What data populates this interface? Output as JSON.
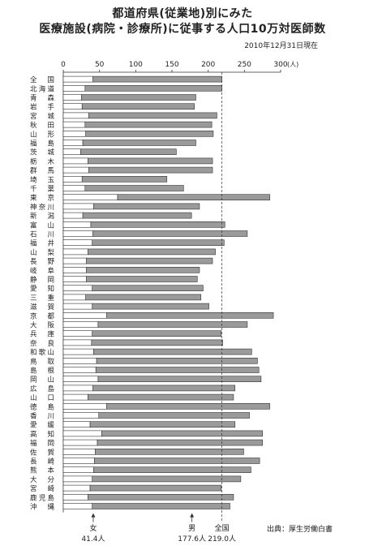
{
  "title_line1": "都道府県(従業地)別にみた",
  "title_line2": "医療施設(病院・診療所)に従事する人口10万対医師数",
  "as_of": "2010年12月31日現在",
  "source": "出典：厚生労働白書",
  "markers": {
    "female": {
      "label": "女",
      "value_label": "41.4人",
      "value": 41.4
    },
    "male": {
      "label": "男",
      "value_label": "177.6人",
      "value": 177.6
    },
    "national": {
      "label": "全国",
      "value_label": "219.0人",
      "value": 219.0
    }
  },
  "colors": {
    "female_bar": "#ffffff",
    "male_bar": "#9a9a9a",
    "outline": "#333333"
  },
  "chart_data": {
    "type": "bar",
    "orientation": "horizontal",
    "stacked": true,
    "xlim": [
      0,
      300
    ],
    "x_ticks": [
      "0",
      "50",
      "100",
      "150",
      "200",
      "250",
      "300"
    ],
    "x_unit": "(人)",
    "categories": [
      "全国",
      "北海道",
      "青森",
      "岩手",
      "宮城",
      "秋田",
      "山形",
      "福島",
      "茨城",
      "栃木",
      "群馬",
      "埼玉",
      "千葉",
      "東京",
      "神奈川",
      "新潟",
      "富山",
      "石川",
      "福井",
      "山梨",
      "長野",
      "岐阜",
      "静岡",
      "愛知",
      "三重",
      "滋賀",
      "京都",
      "大阪",
      "兵庫",
      "奈良",
      "和歌山",
      "鳥取",
      "島根",
      "岡山",
      "広島",
      "山口",
      "徳島",
      "香川",
      "愛媛",
      "高知",
      "福岡",
      "佐賀",
      "長崎",
      "熊本",
      "大分",
      "宮崎",
      "鹿児島",
      "沖縄"
    ],
    "series": [
      {
        "name": "女",
        "values": [
          41,
          30,
          25,
          26,
          35,
          30,
          31,
          27,
          24,
          34,
          35,
          26,
          30,
          75,
          42,
          27,
          38,
          41,
          40,
          34,
          32,
          32,
          32,
          40,
          31,
          40,
          60,
          48,
          40,
          39,
          42,
          46,
          45,
          48,
          41,
          34,
          60,
          49,
          37,
          53,
          47,
          44,
          43,
          42,
          40,
          37,
          34,
          40
        ]
      },
      {
        "name": "男",
        "values": [
          178,
          189,
          158,
          155,
          177,
          175,
          176,
          156,
          132,
          172,
          171,
          117,
          136,
          210,
          146,
          150,
          185,
          213,
          182,
          176,
          174,
          156,
          153,
          153,
          159,
          161,
          230,
          206,
          178,
          181,
          218,
          222,
          225,
          225,
          196,
          201,
          225,
          208,
          200,
          222,
          228,
          205,
          228,
          217,
          205,
          181,
          201,
          190
        ]
      }
    ]
  }
}
